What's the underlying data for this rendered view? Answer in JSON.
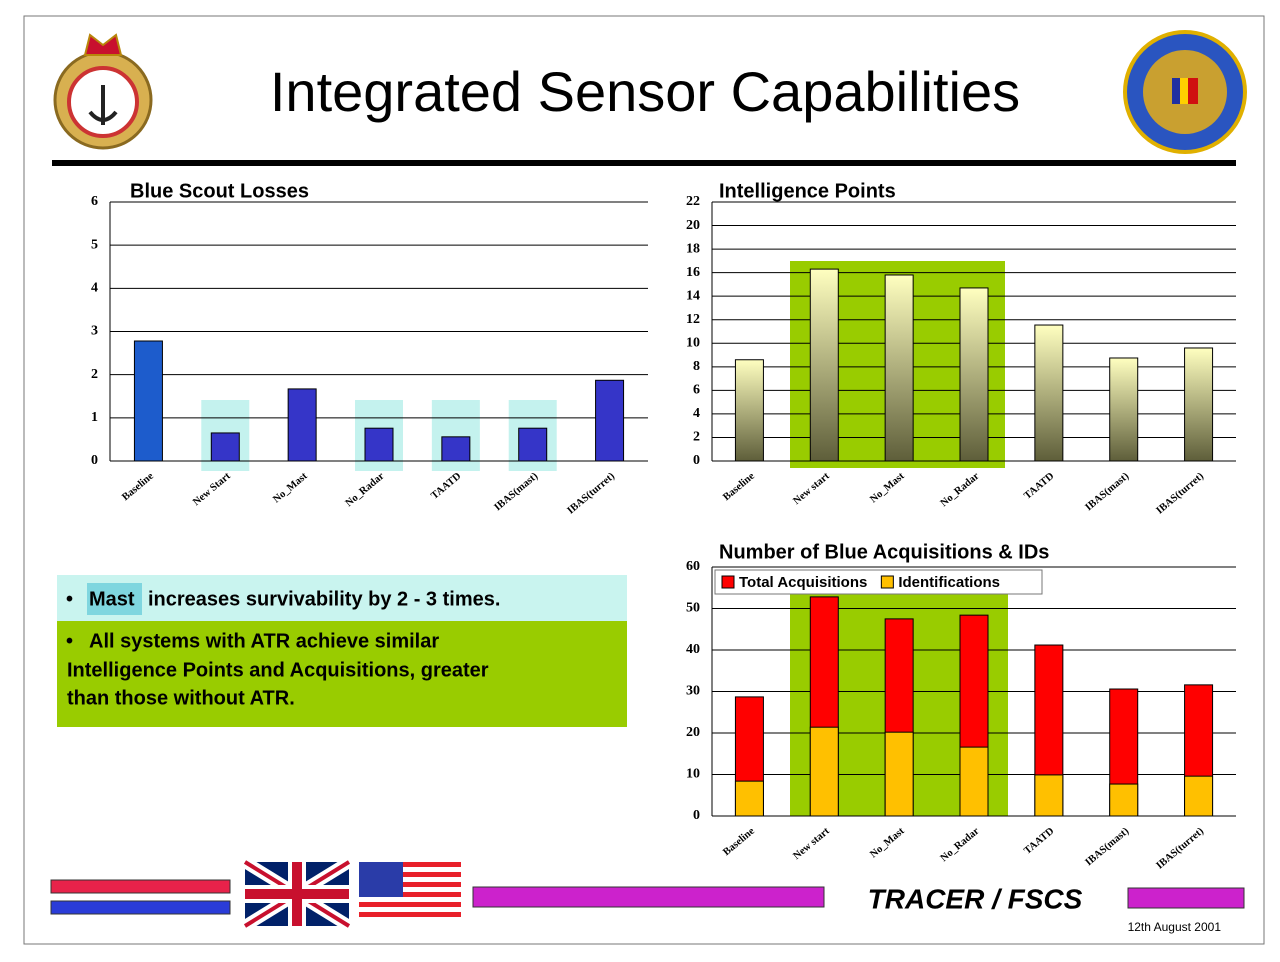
{
  "title": "Integrated Sensor Capabilities",
  "bullets": [
    [
      "Mast",
      "increases survivability by 2 - 3 times."
    ],
    [
      "All systems with ATR achieve similar",
      "Intelligence Points and Acquisitions, greater",
      "than those without ATR."
    ]
  ],
  "footer": {
    "program": "TRACER / FSCS",
    "date": "12th August 2001"
  },
  "chart_data": [
    {
      "type": "bar",
      "title": "Blue Scout Losses",
      "categories": [
        "Baseline",
        "New Start",
        "No_Mast",
        "No_Radar",
        "TAATD",
        "IBAS(mast)",
        "IBAS(turret)"
      ],
      "values": [
        2.78,
        0.65,
        1.67,
        0.76,
        0.56,
        0.76,
        1.87
      ],
      "colors": [
        "#1d5ccc",
        "#3535c8",
        "#3535c8",
        "#3535c8",
        "#3535c8",
        "#3535c8",
        "#3535c8"
      ],
      "ylim": [
        0,
        6
      ],
      "yticks": [
        0,
        1,
        2,
        3,
        4,
        5,
        6
      ],
      "grid": true
    },
    {
      "type": "bar",
      "title": "Intelligence Points",
      "categories": [
        "Baseline",
        "New start",
        "No_Mast",
        "No_Radar",
        "TAATD",
        "IBAS(mast)",
        "IBAS(turret)"
      ],
      "values": [
        8.6,
        16.3,
        15.8,
        14.7,
        11.55,
        8.75,
        9.6
      ],
      "color": "#ffffc0",
      "ylim": [
        0,
        22
      ],
      "yticks": [
        0,
        2,
        4,
        6,
        8,
        10,
        12,
        14,
        16,
        18,
        20,
        22
      ],
      "grid": true
    },
    {
      "type": "bar",
      "title": "Number of Blue Acquisitions & IDs",
      "categories": [
        "Baseline",
        "New start",
        "No_Mast",
        "No_Radar",
        "TAATD",
        "IBAS(mast)",
        "IBAS(turret)"
      ],
      "series": [
        {
          "name": "Total Acquisitions",
          "color": "#ff0000",
          "values": [
            28.7,
            52.8,
            47.5,
            48.4,
            41.2,
            30.6,
            31.6
          ]
        },
        {
          "name": "Identifications",
          "color": "#ffc000",
          "values": [
            8.4,
            21.4,
            20.2,
            16.6,
            9.9,
            7.7,
            9.6
          ]
        }
      ],
      "ylim": [
        0,
        60
      ],
      "yticks": [
        0,
        10,
        20,
        30,
        40,
        50,
        60
      ],
      "grid": true,
      "legend": "top-left"
    }
  ]
}
